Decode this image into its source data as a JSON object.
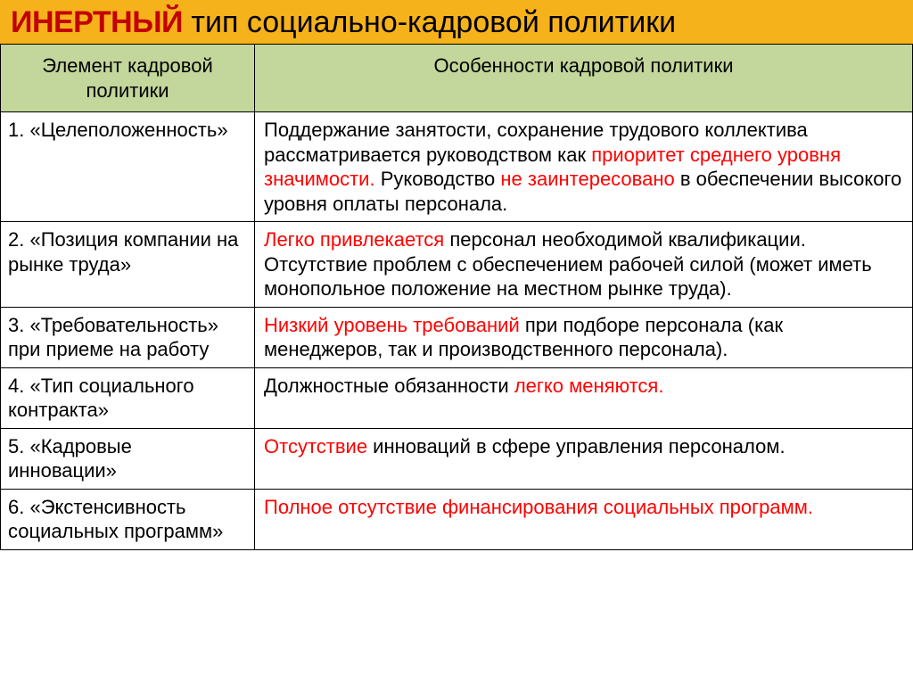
{
  "colors": {
    "title_bg": "#f6b21b",
    "title_bold_color": "#c20000",
    "header_bg": "#c3d69b",
    "border": "#000000",
    "text": "#000000",
    "highlight": "#ff0000"
  },
  "title": {
    "bold": "ИНЕРТНЫЙ",
    "rest": " тип социально-кадровой политики"
  },
  "headers": {
    "col1_line1": "Элемент кадровой",
    "col1_line2": "политики",
    "col2": "Особенности кадровой политики"
  },
  "rows": [
    {
      "num": "1.",
      "label": "«Целеположенность»",
      "label2": "",
      "desc_parts": [
        {
          "t": "Поддержание занятости, сохранение трудового коллектива рассматривается руководством как ",
          "c": "n"
        },
        {
          "t": "приоритет среднего уровня значимости. ",
          "c": "r"
        },
        {
          "t": "Руководство ",
          "c": "n"
        },
        {
          "t": "не заинтересовано",
          "c": "r"
        },
        {
          "t": " в обеспечении высокого уровня оплаты персонала.",
          "c": "n"
        }
      ]
    },
    {
      "num": "2.",
      "label": "«Позиция компании на",
      "label2": "рынке труда»",
      "desc_parts": [
        {
          "t": "Легко привлекается",
          "c": "r"
        },
        {
          "t": " персонал необходимой квалификации. Отсутствие проблем с обеспечением рабочей силой (может иметь монопольное положение на местном рынке труда).",
          "c": "n"
        }
      ]
    },
    {
      "num": "3.",
      "label": "«Требовательность»",
      "label2": "при приеме на работу",
      "desc_parts": [
        {
          "t": "Низкий уровень требований",
          "c": "r"
        },
        {
          "t": " при подборе персонала (как менеджеров, так и производственного персонала).",
          "c": "n"
        }
      ]
    },
    {
      "num": "4.",
      "label": "«Тип социального",
      "label2": "контракта»",
      "desc_parts": [
        {
          "t": "Должностные обязанности ",
          "c": "n"
        },
        {
          "t": "легко меняются.",
          "c": "r"
        }
      ]
    },
    {
      "num": "5.",
      "label": "«Кадровые",
      "label2": "инновации»",
      "desc_parts": [
        {
          "t": "Отсутствие",
          "c": "r"
        },
        {
          "t": " инноваций в сфере управления персоналом.",
          "c": "n"
        }
      ]
    },
    {
      "num": "6.",
      "label": "«Экстенсивность",
      "label2": "социальных программ»",
      "desc_parts": [
        {
          "t": "Полное отсутствие финансирования социальных программ.",
          "c": "r"
        }
      ]
    }
  ]
}
